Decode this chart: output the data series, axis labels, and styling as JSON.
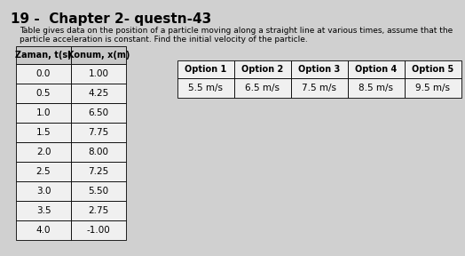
{
  "title": "19 -  Chapter 2- questn-43",
  "subtitle_line1": "Table gives data on the position of a particle moving along a straight line at various times, assume that the",
  "subtitle_line2": "particle acceleration is constant. Find the initial velocity of the particle.",
  "table_headers": [
    "Zaman, t(s)",
    "Konum, x(m)"
  ],
  "table_data": [
    [
      "0.0",
      "1.00"
    ],
    [
      "0.5",
      "4.25"
    ],
    [
      "1.0",
      "6.50"
    ],
    [
      "1.5",
      "7.75"
    ],
    [
      "2.0",
      "8.00"
    ],
    [
      "2.5",
      "7.25"
    ],
    [
      "3.0",
      "5.50"
    ],
    [
      "3.5",
      "2.75"
    ],
    [
      "4.0",
      "-1.00"
    ]
  ],
  "options_headers": [
    "Option 1",
    "Option 2",
    "Option 3",
    "Option 4",
    "Option 5"
  ],
  "options_values": [
    "5.5 m/s",
    "6.5 m/s",
    "7.5 m/s",
    "8.5 m/s",
    "9.5 m/s"
  ],
  "bg_color": "#d0d0d0",
  "table_bg": "#f0f0f0",
  "header_bg": "#c8c8c8",
  "title_fontsize": 11,
  "subtitle_fontsize": 6.5,
  "table_fontsize": 7.5,
  "options_fontsize": 7.5
}
